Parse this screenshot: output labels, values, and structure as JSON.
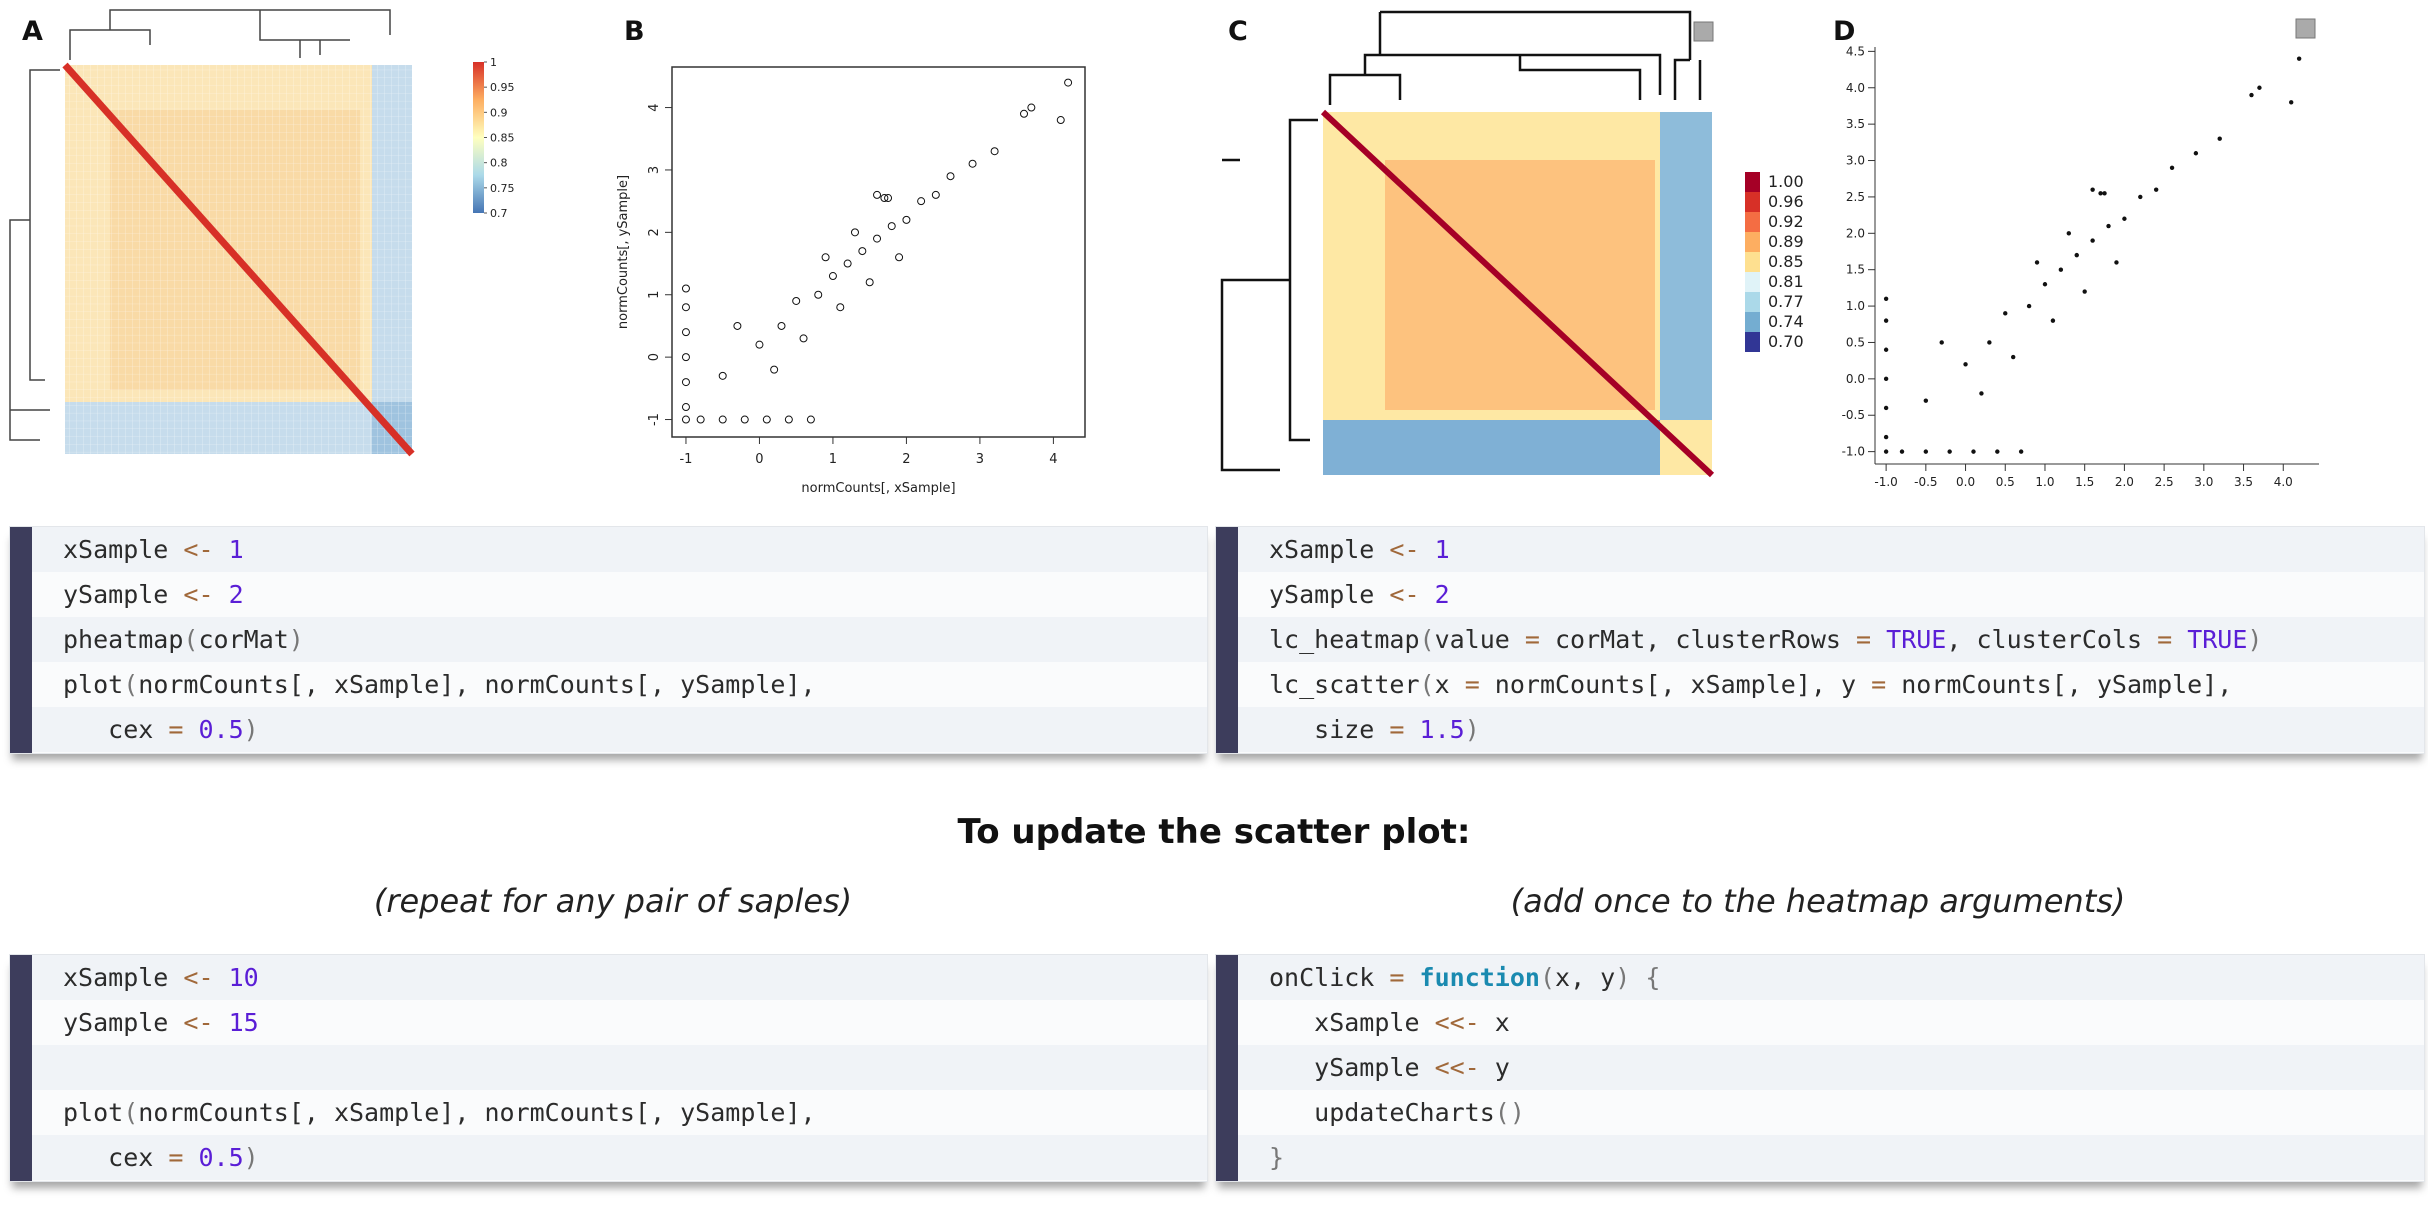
{
  "chart_data": [
    {
      "type": "heatmap",
      "label": "A",
      "clim": [
        0.7,
        1
      ],
      "cticks": [
        1,
        0.95,
        0.9,
        0.85,
        0.8,
        0.75,
        0.7
      ],
      "colors": [
        "#d73027",
        "#fdae61",
        "#ffffbf",
        "#abd9e9",
        "#4575b4"
      ]
    },
    {
      "type": "scatter",
      "label": "B",
      "style": "open",
      "xlabel": "normCounts[, xSample]",
      "ylabel": "normCounts[, ySample]",
      "xlim": [
        -1.19,
        4.43
      ],
      "ylim": [
        -1.28,
        4.65
      ],
      "xticks": [
        -1,
        0,
        1,
        2,
        3,
        4
      ],
      "yticks": [
        -1,
        0,
        1,
        2,
        3,
        4
      ],
      "x": [
        -1,
        -0.8,
        -0.5,
        -0.2,
        0.1,
        0.4,
        0.7,
        -1,
        -1,
        -1,
        -1,
        -1,
        -1,
        -0.5,
        0,
        0.3,
        0.5,
        0.8,
        1,
        1.2,
        1.4,
        1.6,
        1.8,
        2,
        2.2,
        2.4,
        2.6,
        0.2,
        0.6,
        1.1,
        1.5,
        1.9,
        -0.3,
        0.9,
        1.3,
        1.6,
        2.9,
        3.2,
        3.6,
        3.7,
        4.1,
        4.2,
        1.7,
        1.75
      ],
      "y": [
        -1,
        -1,
        -1,
        -1,
        -1,
        -1,
        -1,
        -0.8,
        -0.4,
        0,
        0.4,
        0.8,
        1.1,
        -0.3,
        0.2,
        0.5,
        0.9,
        1,
        1.3,
        1.5,
        1.7,
        1.9,
        2.1,
        2.2,
        2.5,
        2.6,
        2.9,
        -0.2,
        0.3,
        0.8,
        1.2,
        1.6,
        0.5,
        1.6,
        2,
        2.6,
        3.1,
        3.3,
        3.9,
        4,
        3.8,
        4.4,
        2.55,
        2.55
      ]
    },
    {
      "type": "heatmap",
      "label": "C",
      "clim": [
        0.7,
        1
      ],
      "cticks": [
        {
          "value": 1,
          "label": "1.00"
        },
        0.96,
        0.92,
        0.89,
        0.85,
        0.81,
        0.77,
        0.74,
        {
          "value": 0.7,
          "label": "0.70"
        }
      ],
      "colors": [
        "#a50026",
        "#d73027",
        "#f46d43",
        "#fdae61",
        "#fee090",
        "#e0f3f8",
        "#abd9e9",
        "#74add1",
        "#313695"
      ]
    },
    {
      "type": "scatter",
      "label": "D",
      "style": "dot",
      "xlim": [
        -1.14,
        4.45
      ],
      "ylim": [
        -1.17,
        4.56
      ],
      "xticks": [
        {
          "value": -1,
          "label": "-1.0"
        },
        -0.5,
        {
          "value": 0,
          "label": "0.0"
        },
        0.5,
        {
          "value": 1,
          "label": "1.0"
        },
        1.5,
        {
          "value": 2,
          "label": "2.0"
        },
        2.5,
        {
          "value": 3,
          "label": "3.0"
        },
        3.5,
        {
          "value": 4,
          "label": "4.0"
        }
      ],
      "yticks": [
        {
          "value": -1,
          "label": "-1.0"
        },
        -0.5,
        {
          "value": 0,
          "label": "0.0"
        },
        0.5,
        {
          "value": 1,
          "label": "1.0"
        },
        1.5,
        {
          "value": 2,
          "label": "2.0"
        },
        2.5,
        {
          "value": 3,
          "label": "3.0"
        },
        3.5,
        {
          "value": 4,
          "label": "4.0"
        },
        4.5
      ],
      "x": [
        -1,
        -0.8,
        -0.5,
        -0.2,
        0.1,
        0.4,
        0.7,
        -1,
        -1,
        -1,
        -1,
        -1,
        -1,
        -0.5,
        0,
        0.3,
        0.5,
        0.8,
        1,
        1.2,
        1.4,
        1.6,
        1.8,
        2,
        2.2,
        2.4,
        2.6,
        0.2,
        0.6,
        1.1,
        1.5,
        1.9,
        -0.3,
        0.9,
        1.3,
        1.6,
        2.9,
        3.2,
        3.6,
        3.7,
        4.1,
        4.2,
        1.7,
        1.75
      ],
      "y": [
        -1,
        -1,
        -1,
        -1,
        -1,
        -1,
        -1,
        -0.8,
        -0.4,
        0,
        0.4,
        0.8,
        1.1,
        -0.3,
        0.2,
        0.5,
        0.9,
        1,
        1.3,
        1.5,
        1.7,
        1.9,
        2.1,
        2.2,
        2.5,
        2.6,
        2.9,
        -0.2,
        0.3,
        0.8,
        1.2,
        1.6,
        0.5,
        1.6,
        2,
        2.6,
        3.1,
        3.3,
        3.9,
        4,
        3.8,
        4.4,
        2.55,
        2.55
      ]
    }
  ],
  "code_blocks": [
    {
      "lines": [
        [
          [
            "xSample ",
            "#2b2b2b"
          ],
          [
            "<-",
            "#a0683a"
          ],
          [
            " 1",
            "#5a1ed6"
          ]
        ],
        [
          [
            "ySample ",
            "#2b2b2b"
          ],
          [
            "<-",
            "#a0683a"
          ],
          [
            " 2",
            "#5a1ed6"
          ]
        ],
        [
          [
            "pheatmap",
            "#2b2b2b"
          ],
          [
            "(",
            "#777"
          ],
          [
            "corMat",
            "#2b2b2b"
          ],
          [
            ")",
            "#777"
          ]
        ],
        [
          [
            "plot",
            "#2b2b2b"
          ],
          [
            "(",
            "#777"
          ],
          [
            "normCounts[, xSample], normCounts[, ySample],",
            "#2b2b2b"
          ]
        ],
        [
          [
            "   cex ",
            "#2b2b2b"
          ],
          [
            "=",
            "#a0683a"
          ],
          [
            " 0.5",
            "#5a1ed6"
          ],
          [
            ")",
            "#777"
          ]
        ]
      ]
    },
    {
      "lines": [
        [
          [
            "xSample ",
            "#2b2b2b"
          ],
          [
            "<-",
            "#a0683a"
          ],
          [
            " 1",
            "#5a1ed6"
          ]
        ],
        [
          [
            "ySample ",
            "#2b2b2b"
          ],
          [
            "<-",
            "#a0683a"
          ],
          [
            " 2",
            "#5a1ed6"
          ]
        ],
        [
          [
            "lc_heatmap",
            "#2b2b2b"
          ],
          [
            "(",
            "#777"
          ],
          [
            "value ",
            "#2b2b2b"
          ],
          [
            "=",
            "#a0683a"
          ],
          [
            " corMat, clusterRows ",
            "#2b2b2b"
          ],
          [
            "=",
            "#a0683a"
          ],
          [
            " TRUE",
            "#5a1ed6"
          ],
          [
            ", clusterCols ",
            "#2b2b2b"
          ],
          [
            "=",
            "#a0683a"
          ],
          [
            " TRUE",
            "#5a1ed6"
          ],
          [
            ")",
            "#777"
          ]
        ],
        [
          [
            "lc_scatter",
            "#2b2b2b"
          ],
          [
            "(",
            "#777"
          ],
          [
            "x ",
            "#2b2b2b"
          ],
          [
            "=",
            "#a0683a"
          ],
          [
            " normCounts[, xSample], y ",
            "#2b2b2b"
          ],
          [
            "=",
            "#a0683a"
          ],
          [
            " normCounts[, ySample],",
            "#2b2b2b"
          ]
        ],
        [
          [
            "   size ",
            "#2b2b2b"
          ],
          [
            "=",
            "#a0683a"
          ],
          [
            " 1.5",
            "#5a1ed6"
          ],
          [
            ")",
            "#777"
          ]
        ]
      ]
    },
    {
      "lines": [
        [
          [
            "xSample ",
            "#2b2b2b"
          ],
          [
            "<-",
            "#a0683a"
          ],
          [
            " 10",
            "#5a1ed6"
          ]
        ],
        [
          [
            "ySample ",
            "#2b2b2b"
          ],
          [
            "<-",
            "#a0683a"
          ],
          [
            " 15",
            "#5a1ed6"
          ]
        ],
        [],
        [
          [
            "plot",
            "#2b2b2b"
          ],
          [
            "(",
            "#777"
          ],
          [
            "normCounts[, xSample], normCounts[, ySample],",
            "#2b2b2b"
          ]
        ],
        [
          [
            "   cex ",
            "#2b2b2b"
          ],
          [
            "=",
            "#a0683a"
          ],
          [
            " 0.5",
            "#5a1ed6"
          ],
          [
            ")",
            "#777"
          ]
        ]
      ]
    },
    {
      "lines": [
        [
          [
            "onClick ",
            "#2b2b2b"
          ],
          [
            "=",
            "#a0683a"
          ],
          [
            " function",
            "#1a8ab0"
          ],
          [
            "(",
            "#777"
          ],
          [
            "x, y",
            "#2b2b2b"
          ],
          [
            ") {",
            "#777"
          ]
        ],
        [
          [
            "   xSample ",
            "#2b2b2b"
          ],
          [
            "<<-",
            "#a0683a"
          ],
          [
            " x",
            "#2b2b2b"
          ]
        ],
        [
          [
            "   ySample ",
            "#2b2b2b"
          ],
          [
            "<<-",
            "#a0683a"
          ],
          [
            " y",
            "#2b2b2b"
          ]
        ],
        [
          [
            "   updateCharts",
            "#2b2b2b"
          ],
          [
            "()",
            "#777"
          ]
        ],
        [
          [
            "}",
            "#777"
          ]
        ]
      ]
    }
  ],
  "heading": "To update the scatter plot:",
  "notes": [
    "(repeat for any pair of saples)",
    "(add once to the heatmap arguments)"
  ]
}
